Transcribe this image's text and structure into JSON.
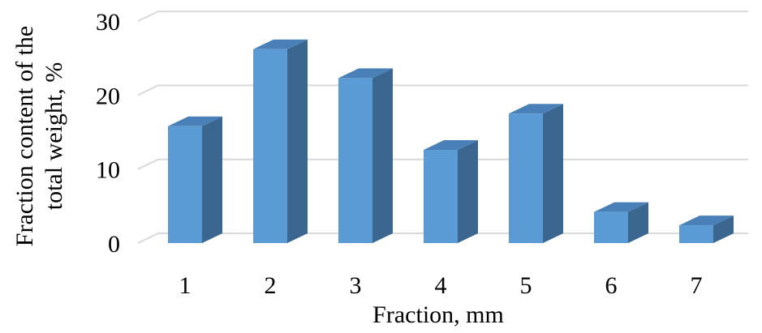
{
  "chart_data": {
    "type": "bar",
    "style": "3d-column",
    "categories": [
      "1",
      "2",
      "3",
      "4",
      "5",
      "6",
      "7"
    ],
    "values": [
      15.8,
      26.2,
      22.3,
      12.6,
      17.5,
      4.2,
      2.4
    ],
    "xlabel": "Fraction, mm",
    "ylabel_lines": [
      "Fraction content of the",
      "total weight, %"
    ],
    "ylim": [
      0,
      30
    ],
    "yticks": [
      "0",
      "10",
      "20",
      "30"
    ],
    "grid": true,
    "legend": "none",
    "colors": {
      "front": "#5b9bd5",
      "side": "#3a6690",
      "top": "#4a80b8",
      "grid": "#d9d9d9"
    }
  }
}
